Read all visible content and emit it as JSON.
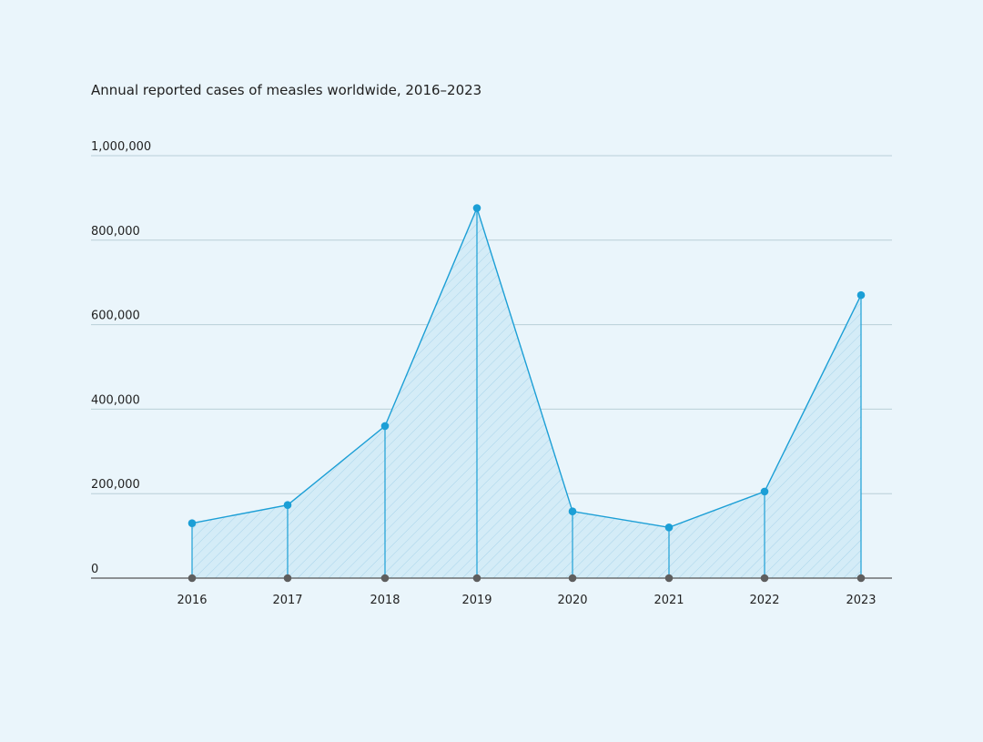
{
  "chart_data": {
    "type": "area",
    "title": "Annual reported cases of measles worldwide, 2016–2023",
    "xlabel": "",
    "ylabel": "",
    "categories": [
      "2016",
      "2017",
      "2018",
      "2019",
      "2020",
      "2021",
      "2022",
      "2023"
    ],
    "series": [
      {
        "values": [
          130000,
          173000,
          360000,
          876000,
          158000,
          120000,
          205000,
          670000
        ]
      }
    ],
    "ylim": [
      0,
      1000000
    ],
    "yticks": [
      0,
      200000,
      400000,
      600000,
      800000,
      1000000
    ],
    "ytick_labels": [
      "0",
      "200,000",
      "400,000",
      "600,000",
      "800,000",
      "1,000,000"
    ],
    "grid": true,
    "legend": "none",
    "colors": {
      "background": "#eaf5fb",
      "series": "#1c9fd6",
      "area_fill": "#d4ecf7",
      "hatch": "#a9d4ea",
      "grid": "#b9cfd8",
      "baseline_marker": "#5e5e5e"
    }
  }
}
